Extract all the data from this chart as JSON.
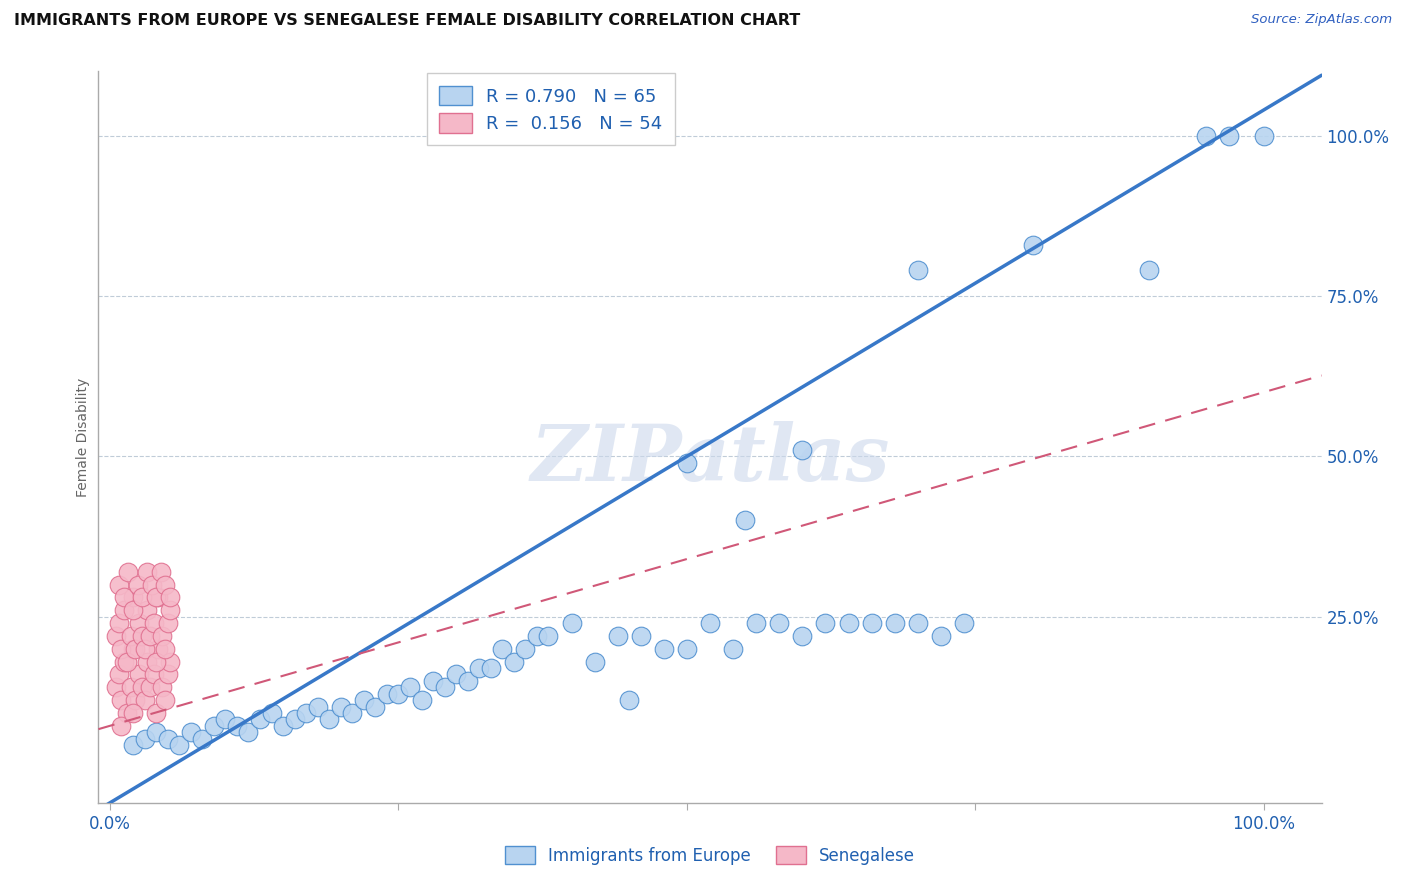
{
  "title": "IMMIGRANTS FROM EUROPE VS SENEGALESE FEMALE DISABILITY CORRELATION CHART",
  "source": "Source: ZipAtlas.com",
  "ylabel": "Female Disability",
  "y_tick_labels": [
    "25.0%",
    "50.0%",
    "75.0%",
    "100.0%"
  ],
  "y_tick_positions": [
    0.25,
    0.5,
    0.75,
    1.0
  ],
  "legend_blue_R": "R = 0.790",
  "legend_blue_N": "N = 65",
  "legend_pink_R": "R =  0.156",
  "legend_pink_N": "N = 54",
  "blue_color": "#b8d4f0",
  "blue_edge_color": "#5090d0",
  "pink_color": "#f5b8c8",
  "pink_edge_color": "#e07090",
  "blue_line_color": "#3878c8",
  "pink_line_color": "#d05878",
  "watermark": "ZIPatlas",
  "blue_line_slope": 1.08,
  "blue_line_intercept": -0.04,
  "pink_line_slope": 0.52,
  "pink_line_intercept": 0.08,
  "blue_scatter_x": [
    0.02,
    0.03,
    0.04,
    0.05,
    0.06,
    0.07,
    0.08,
    0.09,
    0.1,
    0.11,
    0.12,
    0.13,
    0.14,
    0.15,
    0.16,
    0.17,
    0.18,
    0.19,
    0.2,
    0.21,
    0.22,
    0.23,
    0.24,
    0.25,
    0.26,
    0.27,
    0.28,
    0.29,
    0.3,
    0.31,
    0.32,
    0.33,
    0.34,
    0.35,
    0.36,
    0.37,
    0.38,
    0.4,
    0.42,
    0.44,
    0.46,
    0.48,
    0.5,
    0.52,
    0.54,
    0.56,
    0.58,
    0.6,
    0.62,
    0.64,
    0.66,
    0.68,
    0.7,
    0.72,
    0.74,
    0.5,
    0.6,
    0.7,
    0.8,
    0.9,
    0.95,
    0.97,
    1.0,
    0.55,
    0.45
  ],
  "blue_scatter_y": [
    0.05,
    0.06,
    0.07,
    0.06,
    0.05,
    0.07,
    0.06,
    0.08,
    0.09,
    0.08,
    0.07,
    0.09,
    0.1,
    0.08,
    0.09,
    0.1,
    0.11,
    0.09,
    0.11,
    0.1,
    0.12,
    0.11,
    0.13,
    0.13,
    0.14,
    0.12,
    0.15,
    0.14,
    0.16,
    0.15,
    0.17,
    0.17,
    0.2,
    0.18,
    0.2,
    0.22,
    0.22,
    0.24,
    0.18,
    0.22,
    0.22,
    0.2,
    0.2,
    0.24,
    0.2,
    0.24,
    0.24,
    0.22,
    0.24,
    0.24,
    0.24,
    0.24,
    0.24,
    0.22,
    0.24,
    0.49,
    0.51,
    0.79,
    0.83,
    0.79,
    1.0,
    1.0,
    1.0,
    0.4,
    0.12
  ],
  "pink_scatter_x": [
    0.005,
    0.008,
    0.01,
    0.012,
    0.015,
    0.018,
    0.02,
    0.022,
    0.025,
    0.028,
    0.03,
    0.032,
    0.035,
    0.038,
    0.04,
    0.042,
    0.045,
    0.048,
    0.05,
    0.052,
    0.005,
    0.008,
    0.01,
    0.012,
    0.015,
    0.018,
    0.02,
    0.022,
    0.025,
    0.028,
    0.03,
    0.032,
    0.035,
    0.038,
    0.04,
    0.042,
    0.045,
    0.048,
    0.05,
    0.052,
    0.008,
    0.012,
    0.016,
    0.02,
    0.024,
    0.028,
    0.032,
    0.036,
    0.04,
    0.044,
    0.048,
    0.052,
    0.01,
    0.02
  ],
  "pink_scatter_y": [
    0.14,
    0.16,
    0.12,
    0.18,
    0.1,
    0.14,
    0.2,
    0.12,
    0.16,
    0.14,
    0.12,
    0.18,
    0.14,
    0.16,
    0.1,
    0.2,
    0.14,
    0.12,
    0.16,
    0.18,
    0.22,
    0.24,
    0.2,
    0.26,
    0.18,
    0.22,
    0.28,
    0.2,
    0.24,
    0.22,
    0.2,
    0.26,
    0.22,
    0.24,
    0.18,
    0.28,
    0.22,
    0.2,
    0.24,
    0.26,
    0.3,
    0.28,
    0.32,
    0.26,
    0.3,
    0.28,
    0.32,
    0.3,
    0.28,
    0.32,
    0.3,
    0.28,
    0.08,
    0.1
  ]
}
